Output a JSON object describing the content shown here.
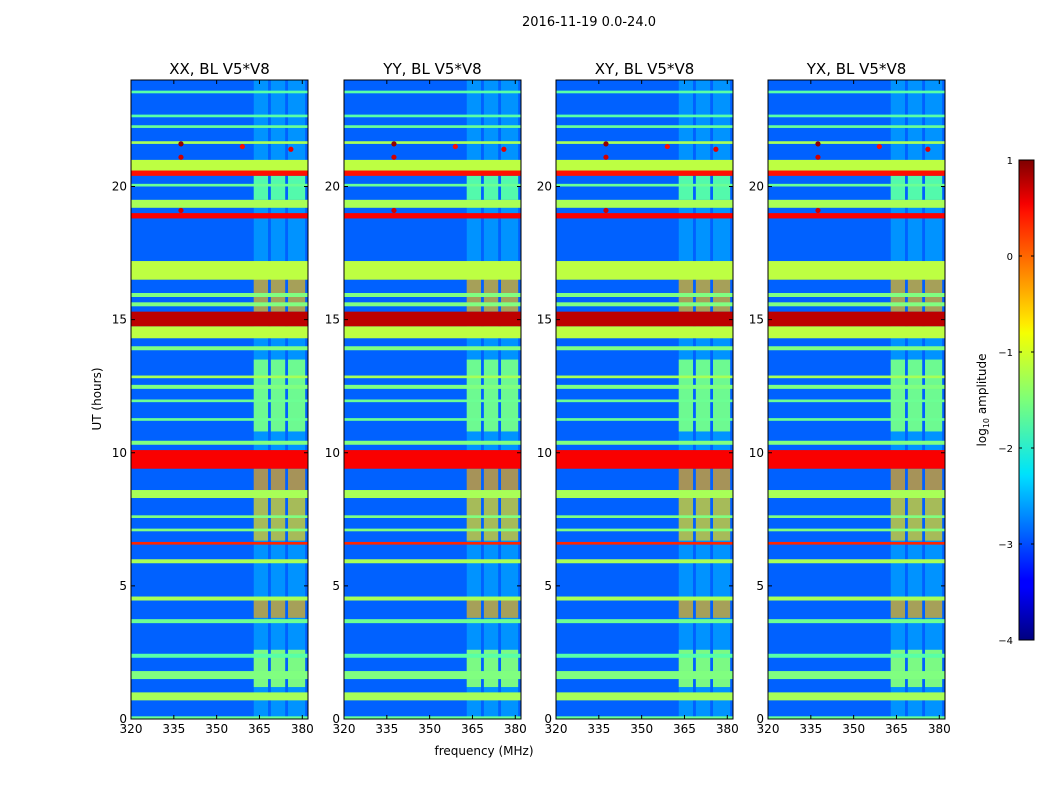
{
  "figure": {
    "suptitle": "2016-11-19 0.0-24.0"
  },
  "chart_data": {
    "type": "heatmap",
    "subtype": "waterfall",
    "colormap": "jet",
    "x_label": "frequency (MHz)",
    "y_label": "UT (hours)",
    "x_range": [
      320,
      382
    ],
    "y_range": [
      0,
      24
    ],
    "x_ticks": [
      320,
      335,
      350,
      365,
      380
    ],
    "y_ticks": [
      0,
      5,
      10,
      15,
      20
    ],
    "panels": [
      {
        "title": "XX, BL V5*V8",
        "show_ylabel": true
      },
      {
        "title": "YY, BL V5*V8",
        "show_ylabel": false
      },
      {
        "title": "XY, BL V5*V8",
        "show_ylabel": false
      },
      {
        "title": "YX, BL V5*V8",
        "show_ylabel": false
      }
    ],
    "colorbar": {
      "label": "log10 amplitude",
      "label_main": "log",
      "label_sub": "10",
      "label_rest": " amplitude",
      "range": [
        -4,
        1
      ],
      "ticks": [
        "1",
        "0",
        "−1",
        "−2",
        "−3",
        "−4"
      ],
      "tick_values": [
        1,
        0,
        -1,
        -2,
        -3,
        -4
      ]
    },
    "background_level": -2.9,
    "rfi_block_freq_range": [
      363,
      381
    ],
    "rfi_block_subbands": [
      [
        363,
        368
      ],
      [
        369,
        374
      ],
      [
        375,
        381
      ]
    ],
    "broadband_bands_ut": [
      {
        "start": 0.0,
        "end": 0.1,
        "value": -1.6
      },
      {
        "start": 0.7,
        "end": 1.0,
        "value": -1.3
      },
      {
        "start": 1.5,
        "end": 1.8,
        "value": -1.5
      },
      {
        "start": 2.3,
        "end": 2.45,
        "value": -1.7
      },
      {
        "start": 3.6,
        "end": 3.75,
        "value": -1.6
      },
      {
        "start": 4.45,
        "end": 4.6,
        "value": -1.3
      },
      {
        "start": 5.85,
        "end": 6.0,
        "value": -1.3
      },
      {
        "start": 6.55,
        "end": 6.65,
        "value": 0.2
      },
      {
        "start": 7.05,
        "end": 7.15,
        "value": -1.5
      },
      {
        "start": 7.55,
        "end": 7.65,
        "value": -1.5
      },
      {
        "start": 8.3,
        "end": 8.6,
        "value": -1.3
      },
      {
        "start": 9.4,
        "end": 10.1,
        "value": 0.4
      },
      {
        "start": 10.3,
        "end": 10.45,
        "value": -1.5
      },
      {
        "start": 11.2,
        "end": 11.3,
        "value": -1.6
      },
      {
        "start": 11.9,
        "end": 12.0,
        "value": -1.6
      },
      {
        "start": 12.4,
        "end": 12.55,
        "value": -1.5
      },
      {
        "start": 12.8,
        "end": 12.9,
        "value": -1.3
      },
      {
        "start": 13.85,
        "end": 14.0,
        "value": -1.5
      },
      {
        "start": 14.3,
        "end": 14.75,
        "value": -1.2
      },
      {
        "start": 14.75,
        "end": 15.3,
        "value": 0.7
      },
      {
        "start": 15.5,
        "end": 15.65,
        "value": -1.5
      },
      {
        "start": 15.85,
        "end": 16.0,
        "value": -1.5
      },
      {
        "start": 16.5,
        "end": 17.2,
        "value": -1.2
      },
      {
        "start": 18.8,
        "end": 19.0,
        "value": 0.4
      },
      {
        "start": 19.2,
        "end": 19.5,
        "value": -1.3
      },
      {
        "start": 20.0,
        "end": 20.1,
        "value": -1.6
      },
      {
        "start": 20.4,
        "end": 20.6,
        "value": 0.3
      },
      {
        "start": 20.6,
        "end": 21.0,
        "value": -1.2
      },
      {
        "start": 21.6,
        "end": 21.7,
        "value": -1.3
      },
      {
        "start": 22.2,
        "end": 22.3,
        "value": -1.6
      },
      {
        "start": 22.6,
        "end": 22.7,
        "value": -1.7
      },
      {
        "start": 23.5,
        "end": 23.6,
        "value": -1.7
      }
    ],
    "rfi_block_bands_ut": [
      {
        "start": 1.2,
        "end": 2.6,
        "value": -1.2
      },
      {
        "start": 3.8,
        "end": 4.5,
        "value": -0.2
      },
      {
        "start": 6.7,
        "end": 8.3,
        "value": -0.4
      },
      {
        "start": 8.6,
        "end": 9.4,
        "value": -0.1
      },
      {
        "start": 10.8,
        "end": 13.5,
        "value": -1.3
      },
      {
        "start": 15.3,
        "end": 16.7,
        "value": -0.2
      },
      {
        "start": 19.5,
        "end": 20.4,
        "value": -1.5
      }
    ],
    "point_sources": [
      {
        "freq": 337.5,
        "ut": 21.6,
        "value": 0.9
      },
      {
        "freq": 337.5,
        "ut": 21.1,
        "value": 0.6
      },
      {
        "freq": 337.5,
        "ut": 19.1,
        "value": 0.6
      },
      {
        "freq": 359.0,
        "ut": 21.5,
        "value": 0.3
      },
      {
        "freq": 376.0,
        "ut": 21.4,
        "value": 0.5
      }
    ]
  }
}
